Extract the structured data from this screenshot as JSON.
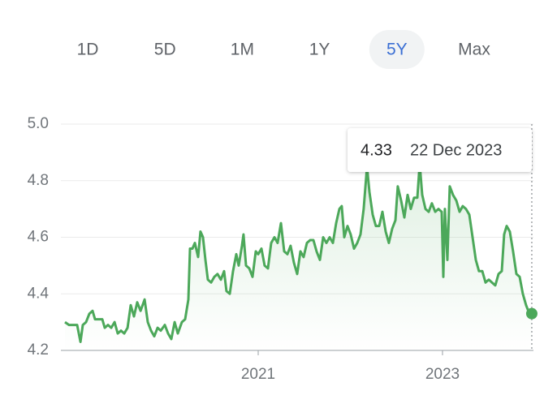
{
  "range_selector": {
    "options": [
      "1D",
      "5D",
      "1M",
      "1Y",
      "5Y",
      "Max"
    ],
    "selected": 4
  },
  "tooltip": {
    "value": "4.33",
    "date": "22 Dec 2023"
  },
  "chart_data": {
    "type": "line",
    "color": "#4ca85a",
    "grid": true,
    "xlim": [
      2018.859,
      2023.987
    ],
    "xticks": [
      2021,
      2023
    ],
    "ylim": [
      4.2,
      5.0
    ],
    "yticks": [
      {
        "value": 4.2,
        "label": "4.2"
      },
      4.4,
      4.6,
      4.8,
      {
        "value": 5.0,
        "label": "5.0"
      }
    ],
    "x": [
      2018.903,
      2018.947,
      2018.991,
      2019.035,
      2019.071,
      2019.097,
      2019.132,
      2019.168,
      2019.203,
      2019.229,
      2019.273,
      2019.308,
      2019.335,
      2019.37,
      2019.405,
      2019.441,
      2019.476,
      2019.511,
      2019.546,
      2019.582,
      2019.617,
      2019.652,
      2019.687,
      2019.723,
      2019.767,
      2019.802,
      2019.837,
      2019.872,
      2019.908,
      2019.943,
      2019.987,
      2020.022,
      2020.057,
      2020.093,
      2020.128,
      2020.172,
      2020.207,
      2020.242,
      2020.26,
      2020.286,
      2020.313,
      2020.348,
      2020.374,
      2020.401,
      2020.427,
      2020.454,
      2020.489,
      2020.524,
      2020.559,
      2020.595,
      2020.63,
      2020.656,
      2020.692,
      2020.727,
      2020.762,
      2020.789,
      2020.824,
      2020.841,
      2020.868,
      2020.903,
      2020.938,
      2020.974,
      2021.0,
      2021.035,
      2021.07,
      2021.106,
      2021.141,
      2021.176,
      2021.211,
      2021.247,
      2021.282,
      2021.317,
      2021.352,
      2021.388,
      2021.423,
      2021.458,
      2021.493,
      2021.529,
      2021.564,
      2021.599,
      2021.634,
      2021.67,
      2021.705,
      2021.74,
      2021.775,
      2021.811,
      2021.846,
      2021.881,
      2021.907,
      2021.934,
      2021.969,
      2022.004,
      2022.04,
      2022.075,
      2022.11,
      2022.145,
      2022.181,
      2022.207,
      2022.242,
      2022.277,
      2022.313,
      2022.348,
      2022.383,
      2022.418,
      2022.454,
      2022.489,
      2022.515,
      2022.551,
      2022.586,
      2022.621,
      2022.656,
      2022.692,
      2022.727,
      2022.753,
      2022.78,
      2022.815,
      2022.85,
      2022.885,
      2022.921,
      2022.956,
      2022.991,
      2023.009,
      2023.026,
      2023.053,
      2023.079,
      2023.114,
      2023.15,
      2023.185,
      2023.22,
      2023.255,
      2023.291,
      2023.326,
      2023.361,
      2023.396,
      2023.432,
      2023.467,
      2023.502,
      2023.537,
      2023.573,
      2023.608,
      2023.643,
      2023.669,
      2023.696,
      2023.731,
      2023.766,
      2023.802,
      2023.837,
      2023.872,
      2023.907,
      2023.943,
      2023.969
    ],
    "values": [
      4.3,
      4.29,
      4.29,
      4.29,
      4.23,
      4.29,
      4.3,
      4.33,
      4.34,
      4.31,
      4.31,
      4.31,
      4.28,
      4.29,
      4.28,
      4.3,
      4.26,
      4.27,
      4.26,
      4.28,
      4.36,
      4.32,
      4.37,
      4.34,
      4.38,
      4.3,
      4.27,
      4.25,
      4.28,
      4.27,
      4.29,
      4.26,
      4.24,
      4.3,
      4.26,
      4.3,
      4.31,
      4.38,
      4.56,
      4.56,
      4.58,
      4.53,
      4.62,
      4.6,
      4.52,
      4.45,
      4.44,
      4.46,
      4.47,
      4.45,
      4.48,
      4.41,
      4.4,
      4.48,
      4.54,
      4.5,
      4.57,
      4.61,
      4.5,
      4.49,
      4.46,
      4.55,
      4.54,
      4.56,
      4.5,
      4.49,
      4.58,
      4.6,
      4.58,
      4.65,
      4.55,
      4.54,
      4.57,
      4.51,
      4.47,
      4.55,
      4.53,
      4.58,
      4.59,
      4.59,
      4.55,
      4.52,
      4.6,
      4.58,
      4.6,
      4.58,
      4.65,
      4.7,
      4.71,
      4.6,
      4.64,
      4.61,
      4.56,
      4.58,
      4.61,
      4.7,
      4.85,
      4.76,
      4.68,
      4.64,
      4.64,
      4.69,
      4.62,
      4.58,
      4.63,
      4.66,
      4.78,
      4.73,
      4.67,
      4.75,
      4.7,
      4.74,
      4.74,
      4.86,
      4.75,
      4.7,
      4.69,
      4.72,
      4.69,
      4.7,
      4.69,
      4.46,
      4.7,
      4.52,
      4.78,
      4.75,
      4.73,
      4.69,
      4.71,
      4.7,
      4.68,
      4.6,
      4.52,
      4.48,
      4.48,
      4.44,
      4.45,
      4.44,
      4.43,
      4.47,
      4.48,
      4.61,
      4.64,
      4.62,
      4.55,
      4.47,
      4.46,
      4.4,
      4.36,
      4.33,
      4.33
    ]
  }
}
